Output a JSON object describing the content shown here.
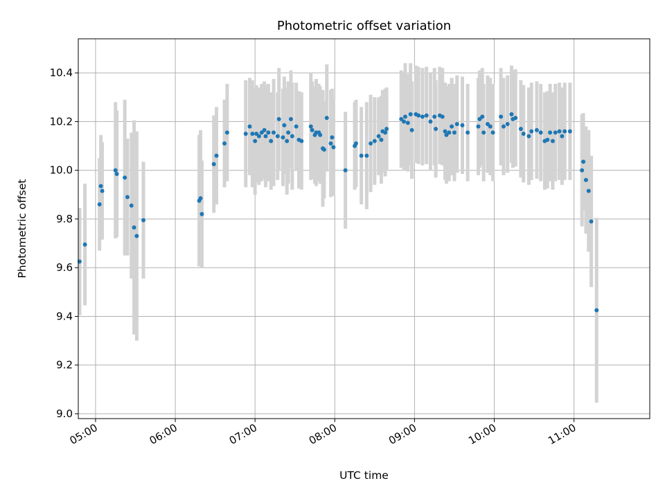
{
  "chart_data": {
    "type": "scatter",
    "title": "Photometric offset variation",
    "xlabel": "UTC time",
    "ylabel": "Photometric offset",
    "x_unit": "UTC HH:MM",
    "xlim": [
      "04:47",
      "11:57"
    ],
    "ylim": [
      8.98,
      10.54
    ],
    "x_ticks": [
      "05:00",
      "06:00",
      "07:00",
      "08:00",
      "09:00",
      "10:00",
      "11:00"
    ],
    "y_ticks": [
      "9.0",
      "9.2",
      "9.4",
      "9.6",
      "9.8",
      "10.0",
      "10.2",
      "10.4"
    ],
    "grid": true,
    "colors": {
      "points": "#1f77b4",
      "errorbars": "#d3d3d3",
      "grid": "#b0b0b0"
    },
    "series": [
      {
        "points": [
          {
            "t": "04:48",
            "y": 9.625,
            "err": 0.22
          },
          {
            "t": "04:52",
            "y": 9.695,
            "err": 0.25
          },
          {
            "t": "05:03",
            "y": 9.86,
            "err": 0.19
          },
          {
            "t": "05:04",
            "y": 9.935,
            "err": 0.21
          },
          {
            "t": "05:05",
            "y": 9.915,
            "err": 0.2
          },
          {
            "t": "05:15",
            "y": 10.0,
            "err": 0.28
          },
          {
            "t": "05:16",
            "y": 9.985,
            "err": 0.26
          },
          {
            "t": "05:22",
            "y": 9.97,
            "err": 0.32
          },
          {
            "t": "05:24",
            "y": 9.89,
            "err": 0.24
          },
          {
            "t": "05:27",
            "y": 9.855,
            "err": 0.3
          },
          {
            "t": "05:29",
            "y": 9.765,
            "err": 0.44
          },
          {
            "t": "05:31",
            "y": 9.73,
            "err": 0.43
          },
          {
            "t": "05:36",
            "y": 9.795,
            "err": 0.24
          },
          {
            "t": "06:18",
            "y": 9.875,
            "err": 0.27
          },
          {
            "t": "06:19",
            "y": 9.885,
            "err": 0.28
          },
          {
            "t": "06:20",
            "y": 9.82,
            "err": 0.22
          },
          {
            "t": "06:29",
            "y": 10.025,
            "err": 0.2
          },
          {
            "t": "06:31",
            "y": 10.06,
            "err": 0.2
          },
          {
            "t": "06:37",
            "y": 10.11,
            "err": 0.18
          },
          {
            "t": "06:39",
            "y": 10.155,
            "err": 0.2
          },
          {
            "t": "06:53",
            "y": 10.15,
            "err": 0.22
          },
          {
            "t": "06:56",
            "y": 10.18,
            "err": 0.2
          },
          {
            "t": "06:58",
            "y": 10.15,
            "err": 0.22
          },
          {
            "t": "07:00",
            "y": 10.12,
            "err": 0.22
          },
          {
            "t": "07:01",
            "y": 10.15,
            "err": 0.2
          },
          {
            "t": "07:03",
            "y": 10.14,
            "err": 0.2
          },
          {
            "t": "07:05",
            "y": 10.155,
            "err": 0.2
          },
          {
            "t": "07:07",
            "y": 10.165,
            "err": 0.2
          },
          {
            "t": "07:08",
            "y": 10.14,
            "err": 0.21
          },
          {
            "t": "07:10",
            "y": 10.155,
            "err": 0.2
          },
          {
            "t": "07:12",
            "y": 10.12,
            "err": 0.2
          },
          {
            "t": "07:14",
            "y": 10.155,
            "err": 0.22
          },
          {
            "t": "07:17",
            "y": 10.14,
            "err": 0.18
          },
          {
            "t": "07:18",
            "y": 10.21,
            "err": 0.21
          },
          {
            "t": "07:21",
            "y": 10.135,
            "err": 0.2
          },
          {
            "t": "07:22",
            "y": 10.185,
            "err": 0.2
          },
          {
            "t": "07:24",
            "y": 10.12,
            "err": 0.22
          },
          {
            "t": "07:25",
            "y": 10.155,
            "err": 0.21
          },
          {
            "t": "07:27",
            "y": 10.21,
            "err": 0.2
          },
          {
            "t": "07:28",
            "y": 10.14,
            "err": 0.22
          },
          {
            "t": "07:31",
            "y": 10.18,
            "err": 0.18
          },
          {
            "t": "07:33",
            "y": 10.125,
            "err": 0.2
          },
          {
            "t": "07:35",
            "y": 10.12,
            "err": 0.2
          },
          {
            "t": "07:42",
            "y": 10.18,
            "err": 0.22
          },
          {
            "t": "07:43",
            "y": 10.165,
            "err": 0.2
          },
          {
            "t": "07:45",
            "y": 10.145,
            "err": 0.2
          },
          {
            "t": "07:46",
            "y": 10.155,
            "err": 0.22
          },
          {
            "t": "07:48",
            "y": 10.155,
            "err": 0.2
          },
          {
            "t": "07:49",
            "y": 10.145,
            "err": 0.2
          },
          {
            "t": "07:51",
            "y": 10.09,
            "err": 0.24
          },
          {
            "t": "07:52",
            "y": 10.085,
            "err": 0.2
          },
          {
            "t": "07:54",
            "y": 10.215,
            "err": 0.22
          },
          {
            "t": "07:57",
            "y": 10.11,
            "err": 0.22
          },
          {
            "t": "07:58",
            "y": 10.135,
            "err": 0.2
          },
          {
            "t": "07:59",
            "y": 10.095,
            "err": 0.2
          },
          {
            "t": "08:08",
            "y": 10.0,
            "err": 0.24
          },
          {
            "t": "08:15",
            "y": 10.1,
            "err": 0.18
          },
          {
            "t": "08:16",
            "y": 10.11,
            "err": 0.18
          },
          {
            "t": "08:20",
            "y": 10.06,
            "err": 0.2
          },
          {
            "t": "08:24",
            "y": 10.06,
            "err": 0.22
          },
          {
            "t": "08:27",
            "y": 10.11,
            "err": 0.2
          },
          {
            "t": "08:30",
            "y": 10.12,
            "err": 0.18
          },
          {
            "t": "08:33",
            "y": 10.14,
            "err": 0.16
          },
          {
            "t": "08:35",
            "y": 10.125,
            "err": 0.18
          },
          {
            "t": "08:36",
            "y": 10.16,
            "err": 0.17
          },
          {
            "t": "08:38",
            "y": 10.155,
            "err": 0.18
          },
          {
            "t": "08:39",
            "y": 10.17,
            "err": 0.17
          },
          {
            "t": "08:50",
            "y": 10.21,
            "err": 0.2
          },
          {
            "t": "08:52",
            "y": 10.2,
            "err": 0.2
          },
          {
            "t": "08:53",
            "y": 10.22,
            "err": 0.22
          },
          {
            "t": "08:55",
            "y": 10.195,
            "err": 0.2
          },
          {
            "t": "08:57",
            "y": 10.23,
            "err": 0.21
          },
          {
            "t": "08:58",
            "y": 10.165,
            "err": 0.2
          },
          {
            "t": "09:01",
            "y": 10.23,
            "err": 0.2
          },
          {
            "t": "09:03",
            "y": 10.225,
            "err": 0.2
          },
          {
            "t": "09:06",
            "y": 10.22,
            "err": 0.2
          },
          {
            "t": "09:09",
            "y": 10.225,
            "err": 0.2
          },
          {
            "t": "09:12",
            "y": 10.2,
            "err": 0.2
          },
          {
            "t": "09:15",
            "y": 10.22,
            "err": 0.2
          },
          {
            "t": "09:16",
            "y": 10.17,
            "err": 0.2
          },
          {
            "t": "09:19",
            "y": 10.225,
            "err": 0.2
          },
          {
            "t": "09:21",
            "y": 10.22,
            "err": 0.2
          },
          {
            "t": "09:23",
            "y": 10.16,
            "err": 0.2
          },
          {
            "t": "09:24",
            "y": 10.145,
            "err": 0.2
          },
          {
            "t": "09:26",
            "y": 10.155,
            "err": 0.2
          },
          {
            "t": "09:28",
            "y": 10.18,
            "err": 0.2
          },
          {
            "t": "09:30",
            "y": 10.155,
            "err": 0.2
          },
          {
            "t": "09:32",
            "y": 10.19,
            "err": 0.2
          },
          {
            "t": "09:36",
            "y": 10.185,
            "err": 0.2
          },
          {
            "t": "09:40",
            "y": 10.155,
            "err": 0.2
          },
          {
            "t": "09:48",
            "y": 10.18,
            "err": 0.2
          },
          {
            "t": "09:49",
            "y": 10.21,
            "err": 0.2
          },
          {
            "t": "09:51",
            "y": 10.22,
            "err": 0.2
          },
          {
            "t": "09:52",
            "y": 10.155,
            "err": 0.2
          },
          {
            "t": "09:55",
            "y": 10.19,
            "err": 0.2
          },
          {
            "t": "09:57",
            "y": 10.18,
            "err": 0.2
          },
          {
            "t": "09:59",
            "y": 10.155,
            "err": 0.2
          },
          {
            "t": "10:05",
            "y": 10.22,
            "err": 0.2
          },
          {
            "t": "10:07",
            "y": 10.18,
            "err": 0.2
          },
          {
            "t": "10:10",
            "y": 10.19,
            "err": 0.2
          },
          {
            "t": "10:13",
            "y": 10.23,
            "err": 0.2
          },
          {
            "t": "10:14",
            "y": 10.21,
            "err": 0.2
          },
          {
            "t": "10:16",
            "y": 10.215,
            "err": 0.2
          },
          {
            "t": "10:20",
            "y": 10.17,
            "err": 0.2
          },
          {
            "t": "10:22",
            "y": 10.15,
            "err": 0.2
          },
          {
            "t": "10:26",
            "y": 10.14,
            "err": 0.2
          },
          {
            "t": "10:28",
            "y": 10.16,
            "err": 0.2
          },
          {
            "t": "10:32",
            "y": 10.165,
            "err": 0.2
          },
          {
            "t": "10:35",
            "y": 10.155,
            "err": 0.2
          },
          {
            "t": "10:38",
            "y": 10.12,
            "err": 0.2
          },
          {
            "t": "10:40",
            "y": 10.125,
            "err": 0.2
          },
          {
            "t": "10:42",
            "y": 10.155,
            "err": 0.2
          },
          {
            "t": "10:44",
            "y": 10.12,
            "err": 0.2
          },
          {
            "t": "10:46",
            "y": 10.155,
            "err": 0.2
          },
          {
            "t": "10:49",
            "y": 10.16,
            "err": 0.2
          },
          {
            "t": "10:51",
            "y": 10.14,
            "err": 0.2
          },
          {
            "t": "10:53",
            "y": 10.16,
            "err": 0.2
          },
          {
            "t": "10:57",
            "y": 10.16,
            "err": 0.2
          },
          {
            "t": "11:06",
            "y": 10.0,
            "err": 0.23
          },
          {
            "t": "11:07",
            "y": 10.035,
            "err": 0.2
          },
          {
            "t": "11:09",
            "y": 9.96,
            "err": 0.22
          },
          {
            "t": "11:11",
            "y": 9.915,
            "err": 0.25
          },
          {
            "t": "11:13",
            "y": 9.79,
            "err": 0.27
          },
          {
            "t": "11:17",
            "y": 9.425,
            "err": 0.38
          }
        ]
      }
    ]
  }
}
